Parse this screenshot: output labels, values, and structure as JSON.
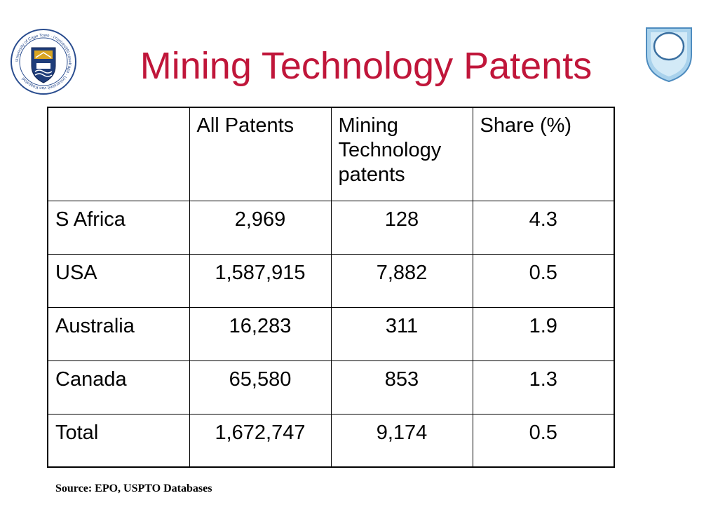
{
  "slide": {
    "title": "Mining Technology Patents",
    "source": "Source: EPO, USPTO Databases",
    "title_color": "#c0163a",
    "logos": {
      "left": {
        "icon": "university-crest-icon",
        "text": "University of Cape Town · iYunivesithi yaseKapa · Universiteit van Kaapstad"
      },
      "right": {
        "icon": "open-university-shield-icon"
      }
    }
  },
  "table": {
    "headers": [
      "",
      "All Patents",
      "Mining Technology patents",
      "Share (%)"
    ],
    "header_lines": {
      "c2": [
        "Mining",
        "Technology",
        "patents"
      ]
    },
    "rows": [
      {
        "country": "S Africa",
        "all": "2,969",
        "mining": "128",
        "share": "4.3"
      },
      {
        "country": "USA",
        "all": "1,587,915",
        "mining": "7,882",
        "share": "0.5"
      },
      {
        "country": "Australia",
        "all": "16,283",
        "mining": "311",
        "share": "1.9"
      },
      {
        "country": "Canada",
        "all": "65,580",
        "mining": "853",
        "share": "1.3"
      },
      {
        "country": "Total",
        "all": "1,672,747",
        "mining": "9,174",
        "share": "0.5"
      }
    ]
  }
}
